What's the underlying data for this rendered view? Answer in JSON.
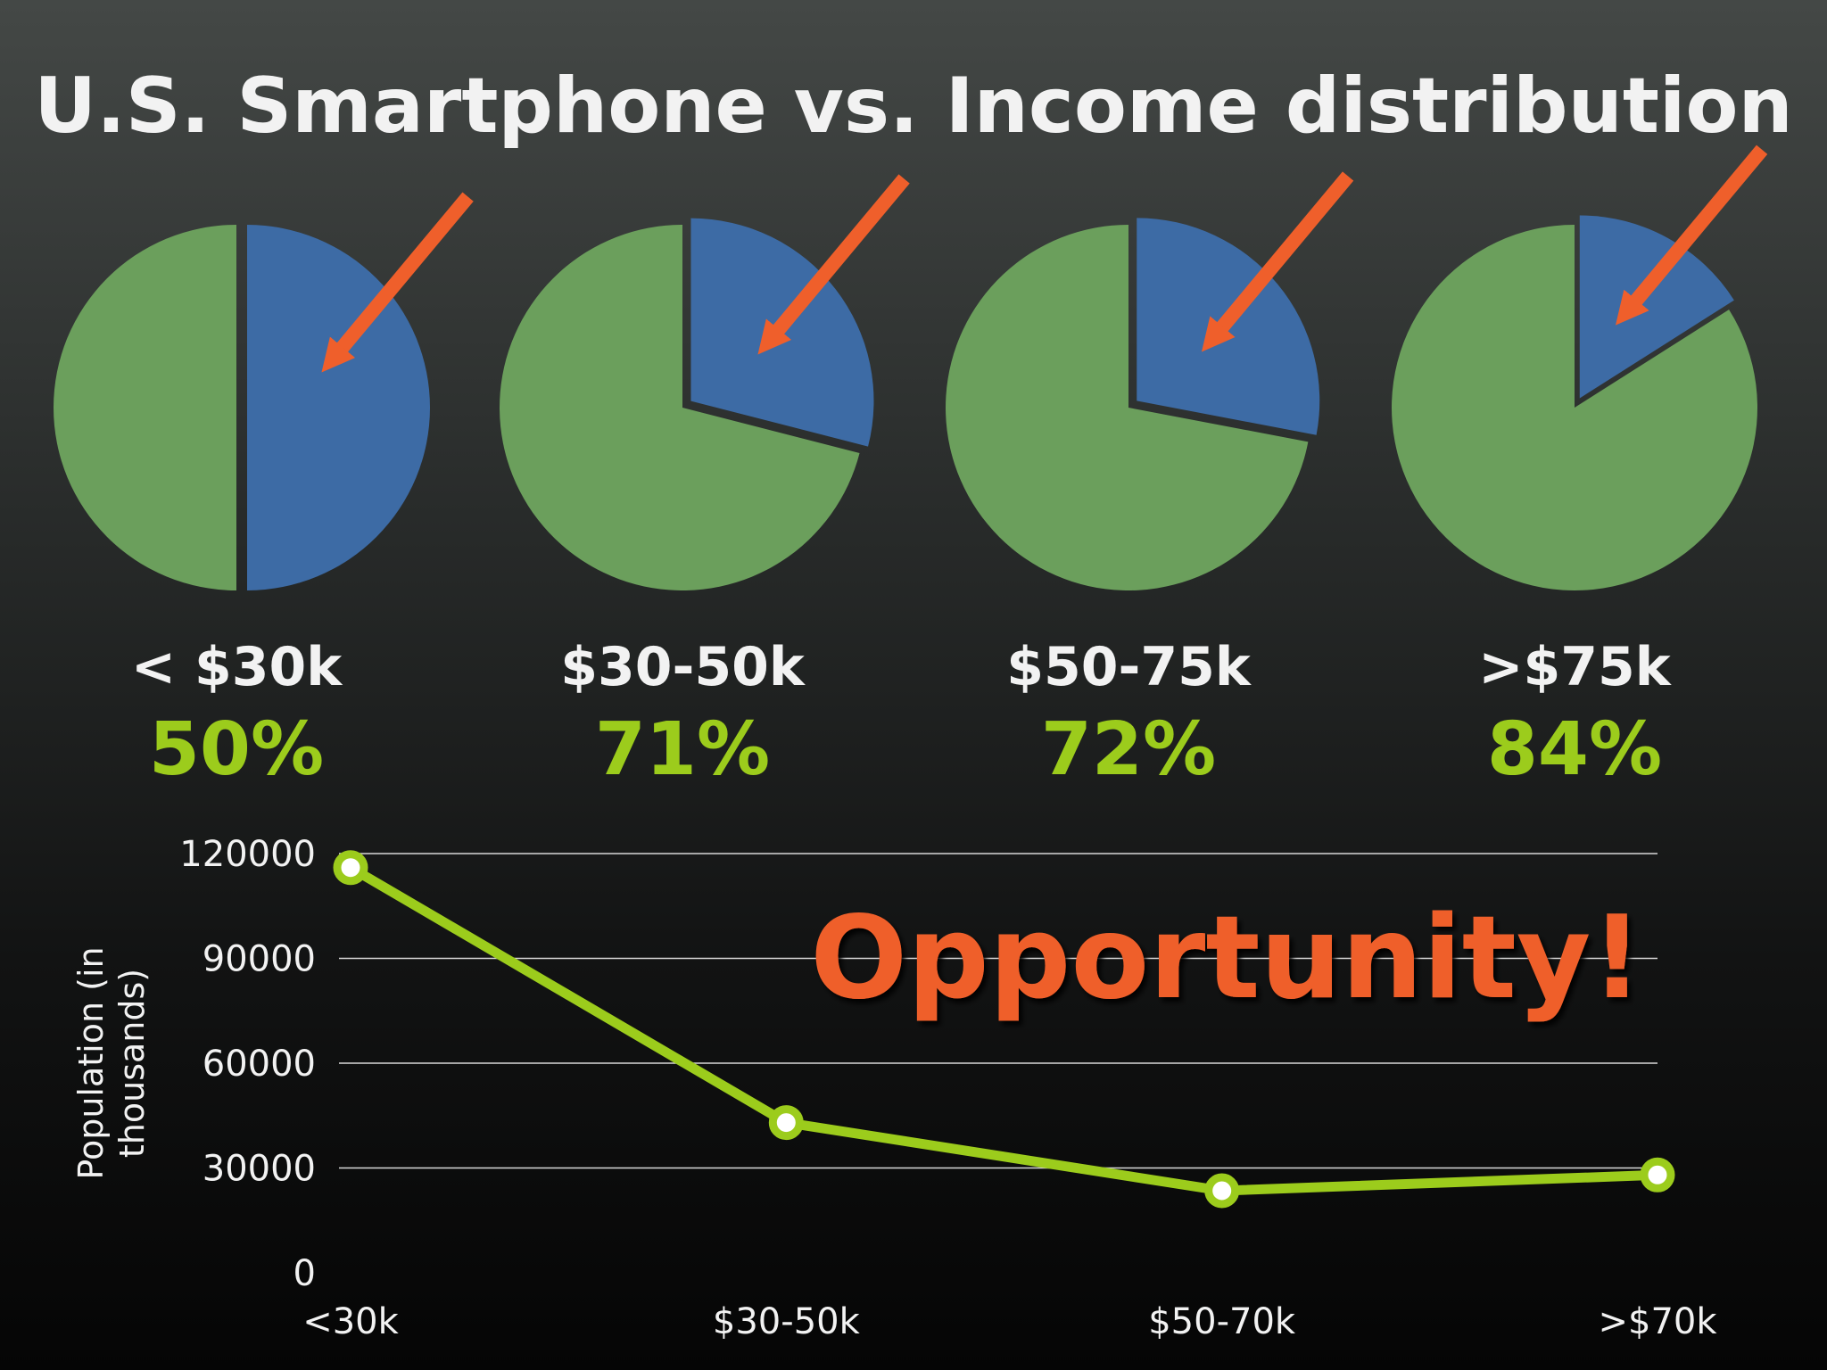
{
  "chart_data": [
    {
      "type": "pie",
      "title": "U.S. Smartphone vs. Income distribution",
      "colors": {
        "highlight": "#3d6ba5",
        "rest": "#6b9f5c",
        "arrow": "#ef5f2b",
        "percent_text": "#9ccc1c",
        "label_text": "#f2f2f2"
      },
      "pies": [
        {
          "label": "< $30k",
          "percent_label": "50%",
          "highlight_fraction": 0.5
        },
        {
          "label": "$30-50k",
          "percent_label": "71%",
          "highlight_fraction": 0.29
        },
        {
          "label": "$50-75k",
          "percent_label": "72%",
          "highlight_fraction": 0.28
        },
        {
          "label": ">$75k",
          "percent_label": "84%",
          "highlight_fraction": 0.16
        }
      ]
    },
    {
      "type": "line",
      "categories": [
        "<30k",
        "$30-50k",
        "$50-70k",
        ">$70k"
      ],
      "series": [
        {
          "values": [
            116000,
            43000,
            23500,
            28000
          ],
          "color": "#9ccc1c"
        }
      ],
      "ylabel": "Population (in thousands)",
      "ylim": [
        0,
        120000
      ],
      "yticks": [
        0,
        30000,
        60000,
        90000,
        120000
      ],
      "grid": true,
      "annotation": {
        "text": "Opportunity!",
        "color": "#ef5f2b"
      }
    }
  ]
}
